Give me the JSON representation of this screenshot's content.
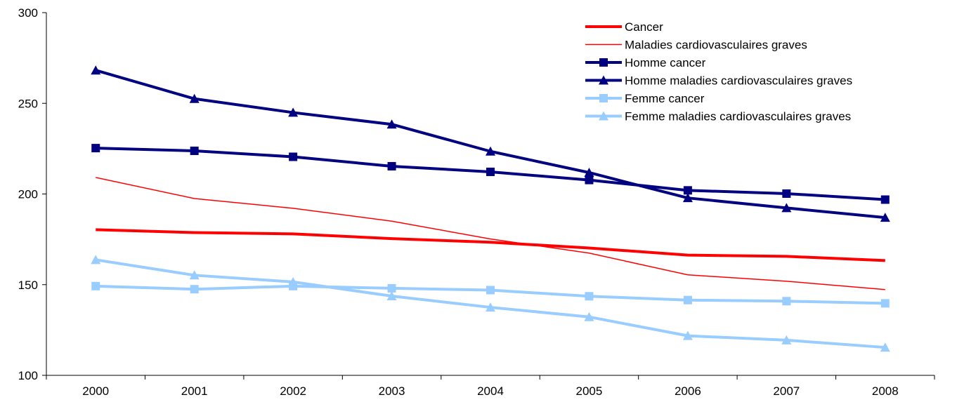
{
  "chart_data": {
    "type": "line",
    "title": "",
    "xlabel": "",
    "ylabel": "",
    "ylim": [
      100,
      300
    ],
    "yticks": [
      100,
      150,
      200,
      250,
      300
    ],
    "categories": [
      "2000",
      "2001",
      "2002",
      "2003",
      "2004",
      "2005",
      "2006",
      "2007",
      "2008"
    ],
    "grid": false,
    "legend_position": "top-right",
    "series": [
      {
        "name": "Cancer",
        "color": "#ff0000",
        "style": "thick",
        "marker": "none",
        "values": [
          180.3,
          178.7,
          178.0,
          175.4,
          173.4,
          170.2,
          166.3,
          165.6,
          163.3
        ]
      },
      {
        "name": "Maladies cardiovasculaires graves",
        "color": "#ff0000",
        "style": "thin",
        "marker": "none",
        "values": [
          209.1,
          197.5,
          192.1,
          185.0,
          175.2,
          167.4,
          155.4,
          151.9,
          147.3
        ]
      },
      {
        "name": "Homme cancer",
        "color": "#000080",
        "style": "thick",
        "marker": "square",
        "values": [
          225.3,
          223.8,
          220.5,
          215.3,
          212.2,
          207.7,
          202.0,
          200.2,
          196.9
        ]
      },
      {
        "name": "Homme maladies cardiovasculaires graves",
        "color": "#000080",
        "style": "thick",
        "marker": "triangle",
        "values": [
          268.2,
          252.5,
          244.9,
          238.4,
          223.5,
          211.8,
          197.8,
          192.3,
          187.0
        ]
      },
      {
        "name": "Femme cancer",
        "color": "#99ccff",
        "style": "thick",
        "marker": "square",
        "values": [
          149.2,
          147.5,
          149.2,
          148.0,
          147.0,
          143.6,
          141.5,
          140.9,
          139.7
        ]
      },
      {
        "name": "Femme maladies cardiovasculaires graves",
        "color": "#99ccff",
        "style": "thick",
        "marker": "triangle",
        "values": [
          163.7,
          155.2,
          151.5,
          143.7,
          137.5,
          132.2,
          121.8,
          119.4,
          115.4
        ]
      }
    ]
  }
}
